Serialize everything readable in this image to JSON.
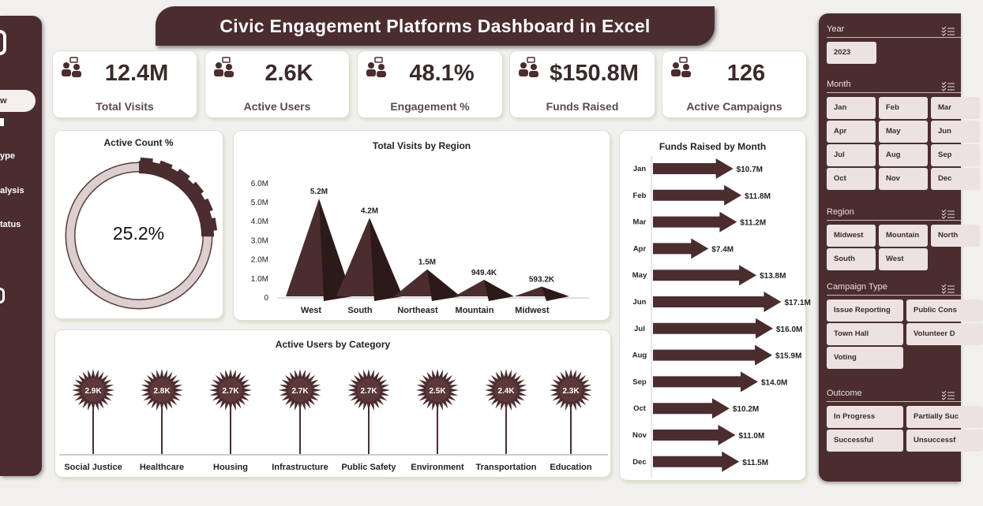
{
  "title": "Civic Engagement Platforms Dashboard in Excel",
  "sidebar": {
    "items": [
      {
        "label": "w"
      },
      {
        "label": "ype"
      },
      {
        "label": "alysis"
      },
      {
        "label": "tatus"
      }
    ]
  },
  "kpis": [
    {
      "value": "12.4M",
      "label": "Total Visits",
      "icon": "people-meeting-icon"
    },
    {
      "value": "2.6K",
      "label": "Active Users",
      "icon": "presenter-icon"
    },
    {
      "value": "48.1%",
      "label": "Engagement %",
      "icon": "social-media-icon"
    },
    {
      "value": "$150.8M",
      "label": "Funds Raised",
      "icon": "money-hand-icon"
    },
    {
      "value": "126",
      "label": "Active Campaigns",
      "icon": "megaphone-group-icon"
    }
  ],
  "active_count": {
    "title": "Active Count %",
    "value": "25.2%",
    "fraction": 0.252
  },
  "colors": {
    "brown": "#4b2d2f",
    "light": "#ece2e1",
    "ring": "#dccfcf"
  },
  "chart_data": [
    {
      "type": "bar",
      "title": "Total Visits by Region",
      "categories": [
        "West",
        "South",
        "Northeast",
        "Mountain",
        "Midwest"
      ],
      "values": [
        5.2,
        4.2,
        1.5,
        0.9494,
        0.5932
      ],
      "labels": [
        "5.2M",
        "4.2M",
        "1.5M",
        "949.4K",
        "593.2K"
      ],
      "yticks": [
        "0",
        "1.0M",
        "2.0M",
        "3.0M",
        "4.0M",
        "5.0M",
        "6.0M"
      ],
      "ylim": [
        0,
        6
      ]
    },
    {
      "type": "bar",
      "orientation": "horizontal",
      "title": "Funds Raised by Month",
      "categories": [
        "Jan",
        "Feb",
        "Mar",
        "Apr",
        "May",
        "Jun",
        "Jul",
        "Aug",
        "Sep",
        "Oct",
        "Nov",
        "Dec"
      ],
      "values": [
        10.7,
        11.8,
        11.2,
        7.4,
        13.8,
        17.1,
        16.0,
        15.9,
        14.0,
        10.2,
        11.0,
        11.5
      ],
      "labels": [
        "$10.7M",
        "$11.8M",
        "$11.2M",
        "$7.4M",
        "$13.8M",
        "$17.1M",
        "$16.0M",
        "$15.9M",
        "$14.0M",
        "$10.2M",
        "$11.0M",
        "$11.5M"
      ]
    },
    {
      "type": "bar",
      "title": "Active Users by Category",
      "categories": [
        "Social Justice",
        "Healthcare",
        "Housing",
        "Infrastructure",
        "Public Safety",
        "Environment",
        "Transportation",
        "Education"
      ],
      "values": [
        2.9,
        2.8,
        2.7,
        2.7,
        2.7,
        2.5,
        2.4,
        2.3
      ],
      "labels": [
        "2.9K",
        "2.8K",
        "2.7K",
        "2.7K",
        "2.7K",
        "2.5K",
        "2.4K",
        "2.3K"
      ]
    }
  ],
  "filters": {
    "year": {
      "title": "Year",
      "options": [
        "2023"
      ]
    },
    "month": {
      "title": "Month",
      "options": [
        "Jan",
        "Feb",
        "Mar",
        "Apr",
        "May",
        "Jun",
        "Jul",
        "Aug",
        "Sep",
        "Oct",
        "Nov",
        "Dec"
      ]
    },
    "region": {
      "title": "Region",
      "options": [
        "Midwest",
        "Mountain",
        "North",
        "South",
        "West"
      ]
    },
    "campaign_type": {
      "title": "Campaign Type",
      "options": [
        "Issue Reporting",
        "Public Cons",
        "Town Hall",
        "Volunteer D",
        "Voting"
      ]
    },
    "outcome": {
      "title": "Outcome",
      "options": [
        "In Progress",
        "Partially Suc",
        "Successful",
        "Unsuccessf"
      ]
    }
  }
}
